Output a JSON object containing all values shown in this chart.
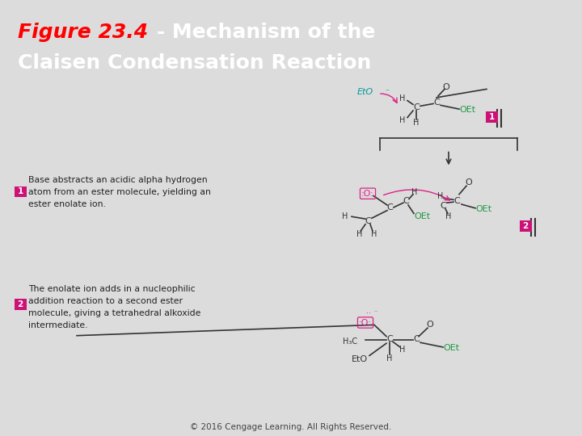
{
  "title_bold": "Figure 23.4",
  "title_rest": " - Mechanism of the",
  "title_line2": "Claisen Condensation Reaction",
  "header_bg": "#2db52d",
  "title_bold_color": "#ff0000",
  "title_rest_color": "#ffffff",
  "body_bg": "#dcdcdc",
  "step1_text": "Base abstracts an acidic alpha hydrogen\natom from an ester molecule, yielding an\nester enolate ion.",
  "step2_text": "The enolate ion adds in a nucleophilic\naddition reaction to a second ester\nmolecule, giving a tetrahedral alkoxide\nintermediate.",
  "footer_text": "© 2016 Cengage Learning. All Rights Reserved.",
  "step_label_bg": "#cc1177",
  "step_label_color": "#ffffff",
  "chem_color": "#333333",
  "pink_color": "#dd2288",
  "teal_color": "#009999",
  "green_color": "#229944"
}
